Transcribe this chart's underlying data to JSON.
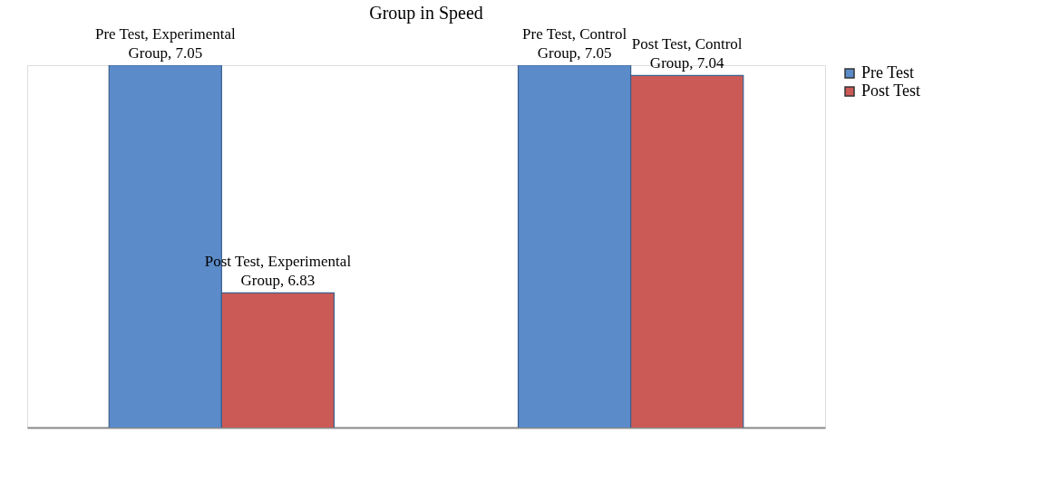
{
  "chart_data": {
    "type": "bar",
    "title": "Group in Speed",
    "categories": [
      null,
      null
    ],
    "series": [
      {
        "name": "Pre Test",
        "color": "#5b8bc9",
        "values": [
          7.05,
          7.05
        ],
        "value_labels": [
          "Pre Test, Experimental Group, 7.05",
          "Pre Test, Control Group, 7.05"
        ]
      },
      {
        "name": "Post Test",
        "color": "#cb5a56",
        "values": [
          6.83,
          7.04
        ],
        "value_labels": [
          "Post Test, Experimental Group, 6.83",
          "Post Test, Control Group, 7.04"
        ]
      }
    ],
    "ylim": [
      6.7,
      7.05
    ],
    "tick_labels": false,
    "grid": false,
    "legend": "right"
  }
}
